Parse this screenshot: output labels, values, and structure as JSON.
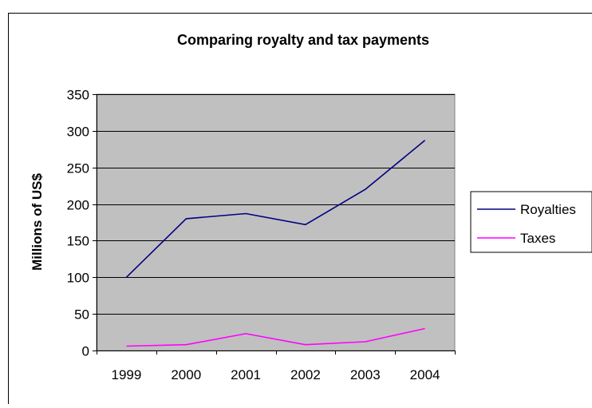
{
  "chart_data": {
    "type": "line",
    "title": "Comparing royalty and tax payments",
    "xlabel": "",
    "ylabel": "Millions of US$",
    "categories": [
      "1999",
      "2000",
      "2001",
      "2002",
      "2003",
      "2004"
    ],
    "ylim": [
      0,
      350
    ],
    "yticks": [
      0,
      50,
      100,
      150,
      200,
      250,
      300,
      350
    ],
    "grid": "horizontal",
    "legend": "right",
    "plot_background": "#c0c0c0",
    "series": [
      {
        "name": "Royalties",
        "color": "#000080",
        "values": [
          100,
          180,
          187,
          172,
          220,
          287
        ]
      },
      {
        "name": "Taxes",
        "color": "#ff00ff",
        "values": [
          6,
          8,
          23,
          8,
          12,
          30
        ]
      }
    ]
  }
}
